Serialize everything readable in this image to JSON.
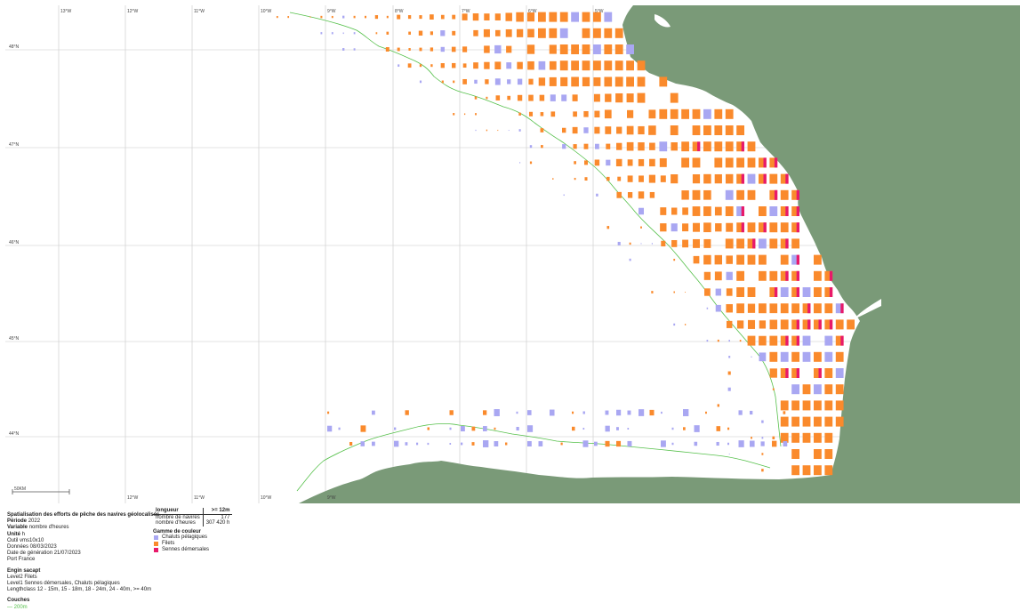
{
  "map": {
    "colors": {
      "land": "#7a9a78",
      "sea": "#ffffff",
      "isobath": "#55c04a",
      "grid": "#c8c8c8",
      "chaluts_pelagiques": "#a9a7f2",
      "filets": "#fa8a2c",
      "sennes_demersales": "#e8196a"
    },
    "top_labels": [
      "13°W",
      "12°W",
      "11°W",
      "10°W",
      "9°W",
      "8°W",
      "7°W",
      "6°W",
      "5°W"
    ],
    "bottom_labels": [
      "12°W",
      "11°W",
      "10°W",
      "9°W"
    ],
    "lat_labels": [
      "48°N",
      "47°N",
      "46°N",
      "45°N",
      "44°N"
    ],
    "scale_label": "50KM"
  },
  "info": {
    "title": "Spatialisation des efforts de pêche des navires géolocalisés",
    "periode_label": "Période",
    "periode": "2022",
    "variable_label": "Variable",
    "variable": "nombre d'heures",
    "unite_label": "Unité",
    "unite": "h",
    "outil": "Outil vms10x10",
    "donnees": "Données 08/03/2023",
    "generation": "Date de génération 21/07/2023",
    "port": "Port France",
    "engin_title": "Engin sacapt",
    "level2": "Level2 Filets",
    "level1": "Level1 Sennes démersales, Chaluts pélagiques",
    "lengthclass": "Lengthclass 12 - 15m, 15 - 18m, 18 - 24m, 24 - 40m, >= 40m",
    "couches_title": "Couches",
    "couche_item": "— 200m"
  },
  "legend": {
    "longueur_header": "longueur",
    "longueur_value": ">= 12m",
    "navires_label": "nombre de navires",
    "navires_value": "177",
    "heures_label": "nombre d'heures",
    "heures_value": "307 420 h",
    "gamme_title": "Gamme de couleur",
    "items": [
      {
        "label": "Chaluts pélagiques",
        "color": "#a9a7f2"
      },
      {
        "label": "Filets",
        "color": "#fa8a2c"
      },
      {
        "label": "Sennes démersales",
        "color": "#e8196a"
      }
    ]
  }
}
